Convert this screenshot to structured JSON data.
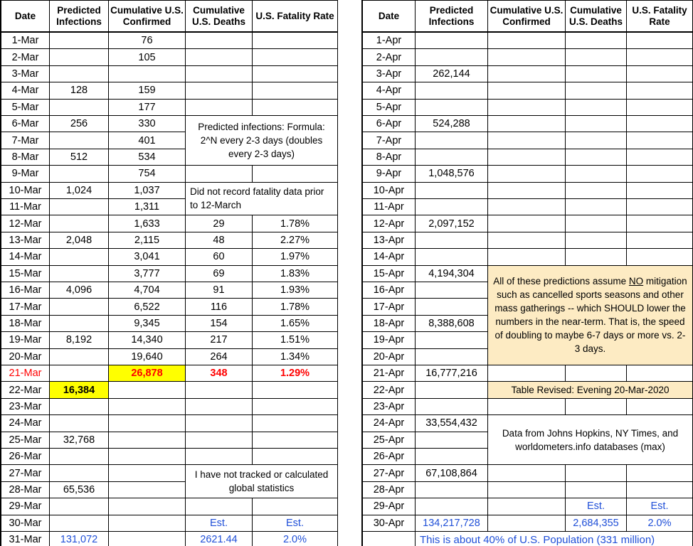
{
  "tables": [
    {
      "header": [
        "Date",
        "Predicted Infections",
        "Cumulative U.S. Confirmed",
        "Cumulative U.S. Deaths",
        "U.S. Fatality Rate"
      ],
      "rows": [
        [
          "1-Mar",
          null,
          "76",
          null,
          null
        ],
        [
          "2-Mar",
          null,
          "105",
          null,
          null
        ],
        [
          "3-Mar",
          null,
          null,
          null,
          null
        ],
        [
          "4-Mar",
          "128",
          "159",
          null,
          null
        ],
        [
          "5-Mar",
          null,
          "177",
          null,
          null
        ],
        [
          "6-Mar",
          "256",
          "330",
          null,
          null
        ],
        [
          "7-Mar",
          null,
          "401",
          null,
          null
        ],
        [
          "8-Mar",
          "512",
          "534",
          null,
          null
        ],
        [
          "9-Mar",
          null,
          "754",
          null,
          null
        ],
        [
          "10-Mar",
          "1,024",
          "1,037",
          null,
          null
        ],
        [
          "11-Mar",
          null,
          "1,311",
          null,
          null
        ],
        [
          "12-Mar",
          null,
          "1,633",
          "29",
          "1.78%"
        ],
        [
          "13-Mar",
          "2,048",
          "2,115",
          "48",
          "2.27%"
        ],
        [
          "14-Mar",
          null,
          "3,041",
          "60",
          "1.97%"
        ],
        [
          "15-Mar",
          null,
          "3,777",
          "69",
          "1.83%"
        ],
        [
          "16-Mar",
          "4,096",
          "4,704",
          "91",
          "1.93%"
        ],
        [
          "17-Mar",
          null,
          "6,522",
          "116",
          "1.78%"
        ],
        [
          "18-Mar",
          null,
          "9,345",
          "154",
          "1.65%"
        ],
        [
          "19-Mar",
          "8,192",
          "14,340",
          "217",
          "1.51%"
        ],
        [
          "20-Mar",
          null,
          "19,640",
          "264",
          "1.34%"
        ],
        [
          "21-Mar",
          null,
          "26,878",
          "348",
          "1.29%"
        ],
        [
          "22-Mar",
          "16,384",
          null,
          null,
          null
        ],
        [
          "23-Mar",
          null,
          null,
          null,
          null
        ],
        [
          "24-Mar",
          null,
          null,
          null,
          null
        ],
        [
          "25-Mar",
          "32,768",
          null,
          null,
          null
        ],
        [
          "26-Mar",
          null,
          null,
          null,
          null
        ],
        [
          "27-Mar",
          null,
          null,
          null,
          null
        ],
        [
          "28-Mar",
          "65,536",
          null,
          null,
          null
        ],
        [
          "29-Mar",
          null,
          null,
          null,
          null
        ],
        [
          "30-Mar",
          null,
          null,
          "Est.",
          "Est."
        ],
        [
          "31-Mar",
          "131,072",
          null,
          "2621.44",
          "2.0%"
        ]
      ],
      "notes": [
        {
          "text": [
            "Predicted infections: Formula: 2^N every 2-3 days (doubles every 2-3 days)"
          ]
        },
        {
          "text": [
            "Did not record fatality data prior to 12-March"
          ]
        },
        {
          "text": [
            "I have not tracked or calculated global statistics"
          ]
        }
      ]
    },
    {
      "header": [
        "Date",
        "Predicted Infections",
        "Cumulative U.S. Confirmed",
        "Cumulative U.S. Deaths",
        "U.S. Fatality Rate"
      ],
      "rows": [
        [
          "1-Apr",
          null,
          null,
          null,
          null
        ],
        [
          "2-Apr",
          null,
          null,
          null,
          null
        ],
        [
          "3-Apr",
          "262,144",
          null,
          null,
          null
        ],
        [
          "4-Apr",
          null,
          null,
          null,
          null
        ],
        [
          "5-Apr",
          null,
          null,
          null,
          null
        ],
        [
          "6-Apr",
          "524,288",
          null,
          null,
          null
        ],
        [
          "7-Apr",
          null,
          null,
          null,
          null
        ],
        [
          "8-Apr",
          null,
          null,
          null,
          null
        ],
        [
          "9-Apr",
          "1,048,576",
          null,
          null,
          null
        ],
        [
          "10-Apr",
          null,
          null,
          null,
          null
        ],
        [
          "11-Apr",
          null,
          null,
          null,
          null
        ],
        [
          "12-Apr",
          "2,097,152",
          null,
          null,
          null
        ],
        [
          "13-Apr",
          null,
          null,
          null,
          null
        ],
        [
          "14-Apr",
          null,
          null,
          null,
          null
        ],
        [
          "15-Apr",
          "4,194,304",
          null,
          null,
          null
        ],
        [
          "16-Apr",
          null,
          null,
          null,
          null
        ],
        [
          "17-Apr",
          null,
          null,
          null,
          null
        ],
        [
          "18-Apr",
          "8,388,608",
          null,
          null,
          null
        ],
        [
          "19-Apr",
          null,
          null,
          null,
          null
        ],
        [
          "20-Apr",
          null,
          null,
          null,
          null
        ],
        [
          "21-Apr",
          "16,777,216",
          null,
          null,
          null
        ],
        [
          "22-Apr",
          null,
          null,
          null,
          null
        ],
        [
          "23-Apr",
          null,
          null,
          null,
          null
        ],
        [
          "24-Apr",
          "33,554,432",
          null,
          null,
          null
        ],
        [
          "25-Apr",
          null,
          null,
          null,
          null
        ],
        [
          "26-Apr",
          null,
          null,
          null,
          null
        ],
        [
          "27-Apr",
          "67,108,864",
          null,
          null,
          null
        ],
        [
          "28-Apr",
          null,
          null,
          null,
          null
        ],
        [
          "29-Apr",
          null,
          null,
          "Est.",
          "Est."
        ],
        [
          "30-Apr",
          "134,217,728",
          null,
          "2,684,355",
          "2.0%"
        ],
        [
          null,
          null,
          null,
          null,
          null
        ]
      ],
      "notes": [
        {
          "text": [
            "All of these predictions assume ",
            "NO",
            " mitigation such as cancelled sports seasons and other mass gatherings -- which SHOULD lower the numbers in the near-term. That is, the speed of doubling to maybe 6-7 days or more vs. 2-3 days."
          ]
        },
        {
          "text": [
            "Table Revised: Evening  20-Mar-2020"
          ]
        },
        {
          "text": [
            "Data from Johns Hopkins, NY Times, and worldometers.info databases (max)"
          ]
        },
        {
          "text": [
            "This is about 40% of U.S. Population (331 million)"
          ]
        }
      ]
    }
  ]
}
